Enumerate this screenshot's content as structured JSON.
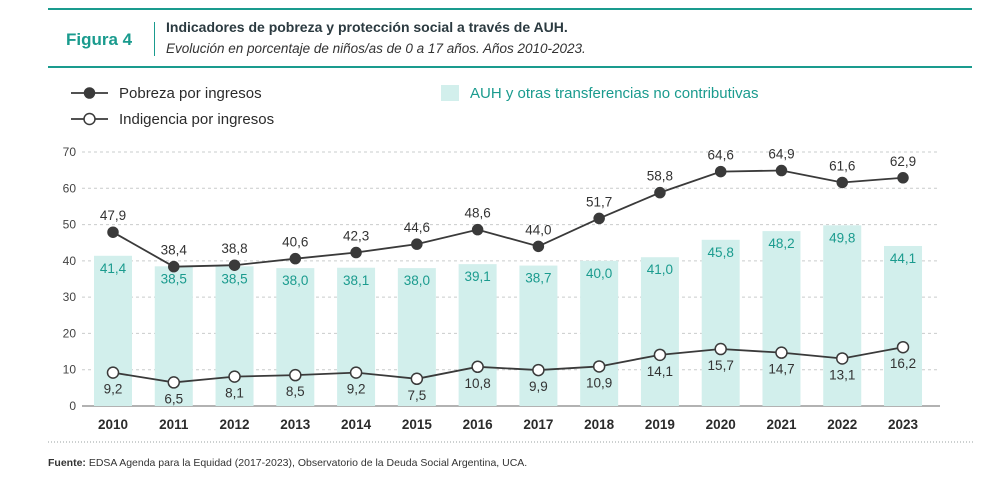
{
  "header": {
    "figure_label": "Figura 4",
    "title": "Indicadores de pobreza y protección social a través de AUH.",
    "subtitle": "Evolución en porcentaje de niños/as de 0 a 17 años. Años 2010-2023."
  },
  "chart_data": {
    "type": "bar",
    "title": "Indicadores de pobreza y protección social a través de AUH.",
    "subtitle": "Evolución en porcentaje de niños/as de 0 a 17 años. Años 2010-2023.",
    "categories": [
      "2010",
      "2011",
      "2012",
      "2013",
      "2014",
      "2015",
      "2016",
      "2017",
      "2018",
      "2019",
      "2020",
      "2021",
      "2022",
      "2023"
    ],
    "ylim": [
      0,
      70
    ],
    "yticks": [
      0,
      10,
      20,
      30,
      40,
      50,
      60,
      70
    ],
    "grid": true,
    "legend_position": "top-left",
    "series": [
      {
        "name": "AUH y otras transferencias no contributivas",
        "type": "bar",
        "color": "#d2efec",
        "label_color": "#1a9b8e",
        "values": [
          41.4,
          38.5,
          38.5,
          38.0,
          38.1,
          38.0,
          39.1,
          38.7,
          40.0,
          41.0,
          45.8,
          48.2,
          49.8,
          44.1
        ],
        "labels": [
          "41,4",
          "38,5",
          "38,5",
          "38,0",
          "38,1",
          "38,0",
          "39,1",
          "38,7",
          "40,0",
          "41,0",
          "45,8",
          "48,2",
          "49,8",
          "44,1"
        ]
      },
      {
        "name": "Pobreza por ingresos",
        "type": "line",
        "marker": "filled",
        "color": "#3a3a3a",
        "values": [
          47.9,
          38.4,
          38.8,
          40.6,
          42.3,
          44.6,
          48.6,
          44.0,
          51.7,
          58.8,
          64.6,
          64.9,
          61.6,
          62.9
        ],
        "labels": [
          "47,9",
          "38,4",
          "38,8",
          "40,6",
          "42,3",
          "44,6",
          "48,6",
          "44,0",
          "51,7",
          "58,8",
          "64,6",
          "64,9",
          "61,6",
          "62,9"
        ]
      },
      {
        "name": "Indigencia por ingresos",
        "type": "line",
        "marker": "hollow",
        "color": "#3a3a3a",
        "values": [
          9.2,
          6.5,
          8.1,
          8.5,
          9.2,
          7.5,
          10.8,
          9.9,
          10.9,
          14.1,
          15.7,
          14.7,
          13.1,
          16.2
        ],
        "labels": [
          "9,2",
          "6,5",
          "8,1",
          "8,5",
          "9,2",
          "7,5",
          "10,8",
          "9,9",
          "10,9",
          "14,1",
          "15,7",
          "14,7",
          "13,1",
          "16,2"
        ]
      }
    ]
  },
  "source": {
    "label": "Fuente:",
    "text": " EDSA Agenda para la Equidad (2017-2023), Observatorio de la Deuda Social Argentina, UCA."
  }
}
